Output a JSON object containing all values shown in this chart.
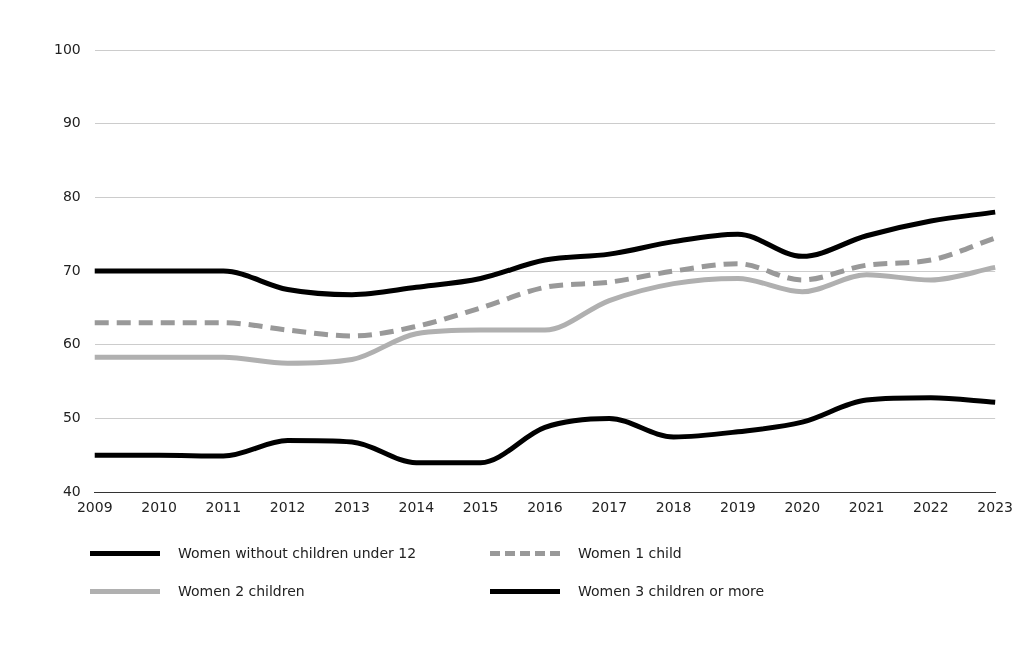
{
  "chart_data": {
    "type": "line",
    "categories": [
      "2009",
      "2010",
      "2011",
      "2012",
      "2013",
      "2014",
      "2015",
      "2016",
      "2017",
      "2018",
      "2019",
      "2020",
      "2021",
      "2022",
      "2023"
    ],
    "series": [
      {
        "name": "Women without children under 12",
        "color": "#000000",
        "line_style": "solid",
        "values": [
          70,
          70,
          70,
          67.5,
          66.8,
          67.8,
          69,
          71.5,
          72.3,
          74,
          75,
          72,
          74.8,
          76.8,
          78
        ]
      },
      {
        "name": "Women 1 child",
        "color": "#999999",
        "line_style": "dashed",
        "values": [
          63,
          63,
          63,
          62,
          61.2,
          62.5,
          65,
          67.8,
          68.5,
          70,
          71,
          68.8,
          70.8,
          71.5,
          74.5
        ]
      },
      {
        "name": "Women 2 children",
        "color": "#b0b0b0",
        "line_style": "solid",
        "values": [
          58.3,
          58.3,
          58.3,
          57.5,
          58,
          61.5,
          62,
          62,
          66,
          68.3,
          69,
          67.2,
          69.5,
          68.8,
          70.5
        ]
      },
      {
        "name": "Women 3 children or more",
        "color": "#000000",
        "line_style": "solid",
        "values": [
          45,
          45,
          44.9,
          47,
          46.8,
          44,
          44,
          48.8,
          50,
          47.5,
          48.2,
          49.5,
          52.5,
          52.8,
          52.2
        ]
      }
    ],
    "ylim": [
      40,
      100
    ],
    "yticks": [
      40,
      50,
      60,
      70,
      80,
      90,
      100
    ],
    "grid": "y",
    "legend": "bottom",
    "marker": "none"
  }
}
